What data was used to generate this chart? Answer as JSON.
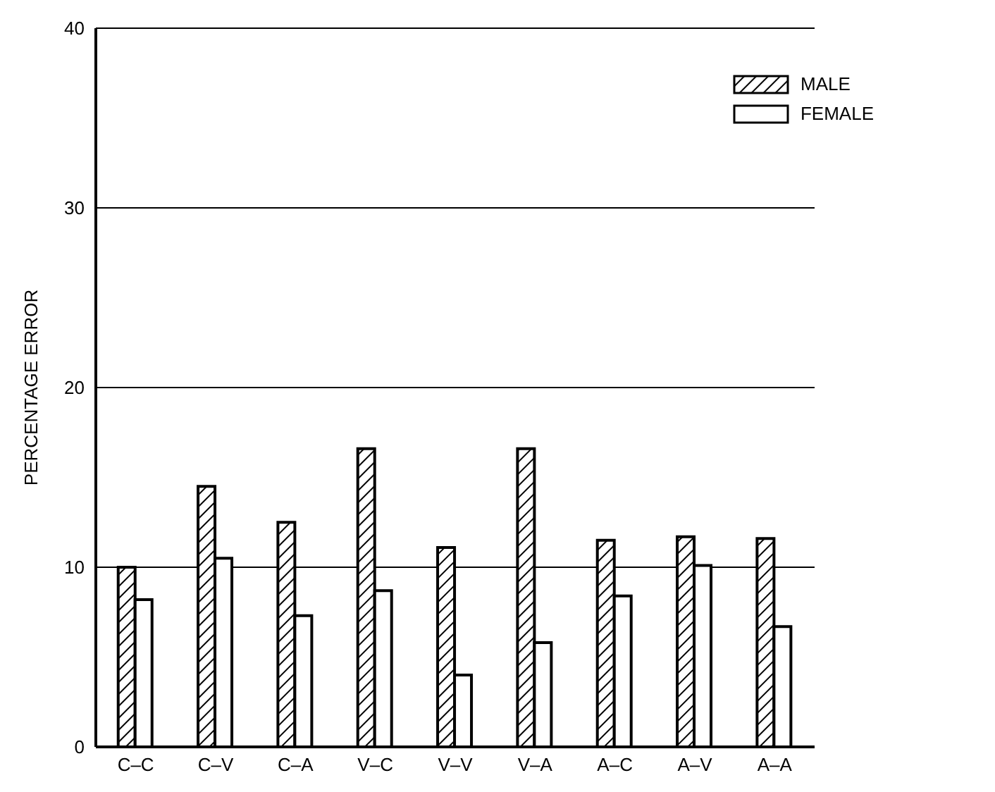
{
  "chart_data": {
    "type": "bar",
    "ylabel": "PERCENTAGE ERROR",
    "categories": [
      "C–C",
      "C–V",
      "C–A",
      "V–C",
      "V–V",
      "V–A",
      "A–C",
      "A–V",
      "A–A"
    ],
    "series": [
      {
        "name": "MALE",
        "color": "#000000",
        "values": [
          10.0,
          14.5,
          12.5,
          16.6,
          11.1,
          16.6,
          11.5,
          11.7,
          11.6
        ]
      },
      {
        "name": "FEMALE",
        "color": "#ffffff",
        "values": [
          8.2,
          10.5,
          7.3,
          8.7,
          4.0,
          5.8,
          8.4,
          10.1,
          6.7
        ]
      }
    ],
    "ylim": [
      0,
      40
    ],
    "yticks": [
      0,
      10,
      20,
      30,
      40
    ],
    "grid": "y",
    "legend": "top right"
  }
}
